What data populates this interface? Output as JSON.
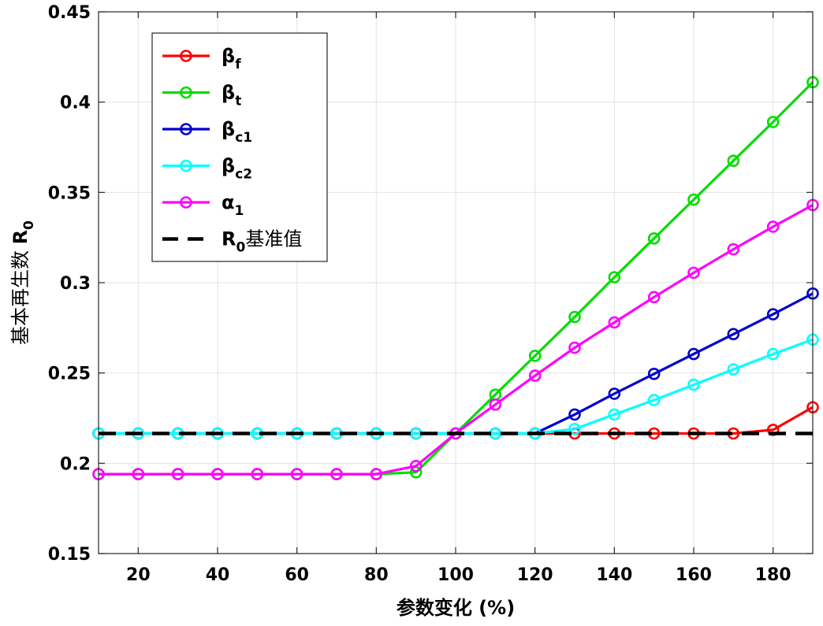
{
  "chart_data": {
    "type": "line",
    "title": "",
    "xlabel": "参数变化 (%)",
    "ylabel": {
      "main": "基本再生数 ",
      "symbol": "R",
      "subscript": "0"
    },
    "xlim": [
      10,
      190
    ],
    "ylim": [
      0.15,
      0.45
    ],
    "xticks": [
      20,
      40,
      60,
      80,
      100,
      120,
      140,
      160,
      180
    ],
    "xtick_labels": [
      "20",
      "40",
      "60",
      "80",
      "100",
      "120",
      "140",
      "160",
      "180"
    ],
    "yticks": [
      0.15,
      0.2,
      0.25,
      0.3,
      0.35,
      0.4,
      0.45
    ],
    "ytick_labels": [
      "0.15",
      "0.2",
      "0.25",
      "0.3",
      "0.35",
      "0.4",
      "0.45"
    ],
    "grid": true,
    "legend_position": "top-left",
    "x": [
      10,
      20,
      30,
      40,
      50,
      60,
      70,
      80,
      90,
      100,
      110,
      120,
      130,
      140,
      150,
      160,
      170,
      180,
      190
    ],
    "series": [
      {
        "name": "β",
        "sub": "f",
        "color": "#ff0000",
        "marker": "circle",
        "values": [
          0.2165,
          0.2165,
          0.2165,
          0.2165,
          0.2165,
          0.2165,
          0.2165,
          0.2165,
          0.2165,
          0.2165,
          0.2165,
          0.2165,
          0.2165,
          0.2165,
          0.2165,
          0.2165,
          0.2165,
          0.2185,
          0.231
        ]
      },
      {
        "name": "β",
        "sub": "t",
        "color": "#00dd00",
        "marker": "circle",
        "values": [
          0.194,
          0.194,
          0.194,
          0.194,
          0.194,
          0.194,
          0.194,
          0.194,
          0.195,
          0.2165,
          0.238,
          0.2595,
          0.281,
          0.303,
          0.3245,
          0.346,
          0.3675,
          0.389,
          0.411
        ]
      },
      {
        "name": "β",
        "sub": "c1",
        "color": "#0000cc",
        "marker": "circle",
        "values": [
          0.2165,
          0.2165,
          0.2165,
          0.2165,
          0.2165,
          0.2165,
          0.2165,
          0.2165,
          0.2165,
          0.2165,
          0.2165,
          0.2165,
          0.227,
          0.2385,
          0.2495,
          0.2605,
          0.2715,
          0.2825,
          0.294
        ]
      },
      {
        "name": "β",
        "sub": "c2",
        "color": "#00ffff",
        "marker": "circle",
        "values": [
          0.2165,
          0.2165,
          0.2165,
          0.2165,
          0.2165,
          0.2165,
          0.2165,
          0.2165,
          0.2165,
          0.2165,
          0.2165,
          0.2165,
          0.219,
          0.227,
          0.235,
          0.2435,
          0.252,
          0.2605,
          0.2685
        ]
      },
      {
        "name": "α",
        "sub": "1",
        "color": "#ff00ff",
        "marker": "circle",
        "values": [
          0.194,
          0.194,
          0.194,
          0.194,
          0.194,
          0.194,
          0.194,
          0.194,
          0.1985,
          0.2165,
          0.2325,
          0.2485,
          0.264,
          0.278,
          0.292,
          0.3055,
          0.3185,
          0.331,
          0.343
        ]
      }
    ],
    "reference_line": {
      "name": "R",
      "sub": "0",
      "suffix": "基准值",
      "value": 0.2165,
      "color": "#000000",
      "style": "dashed"
    }
  }
}
